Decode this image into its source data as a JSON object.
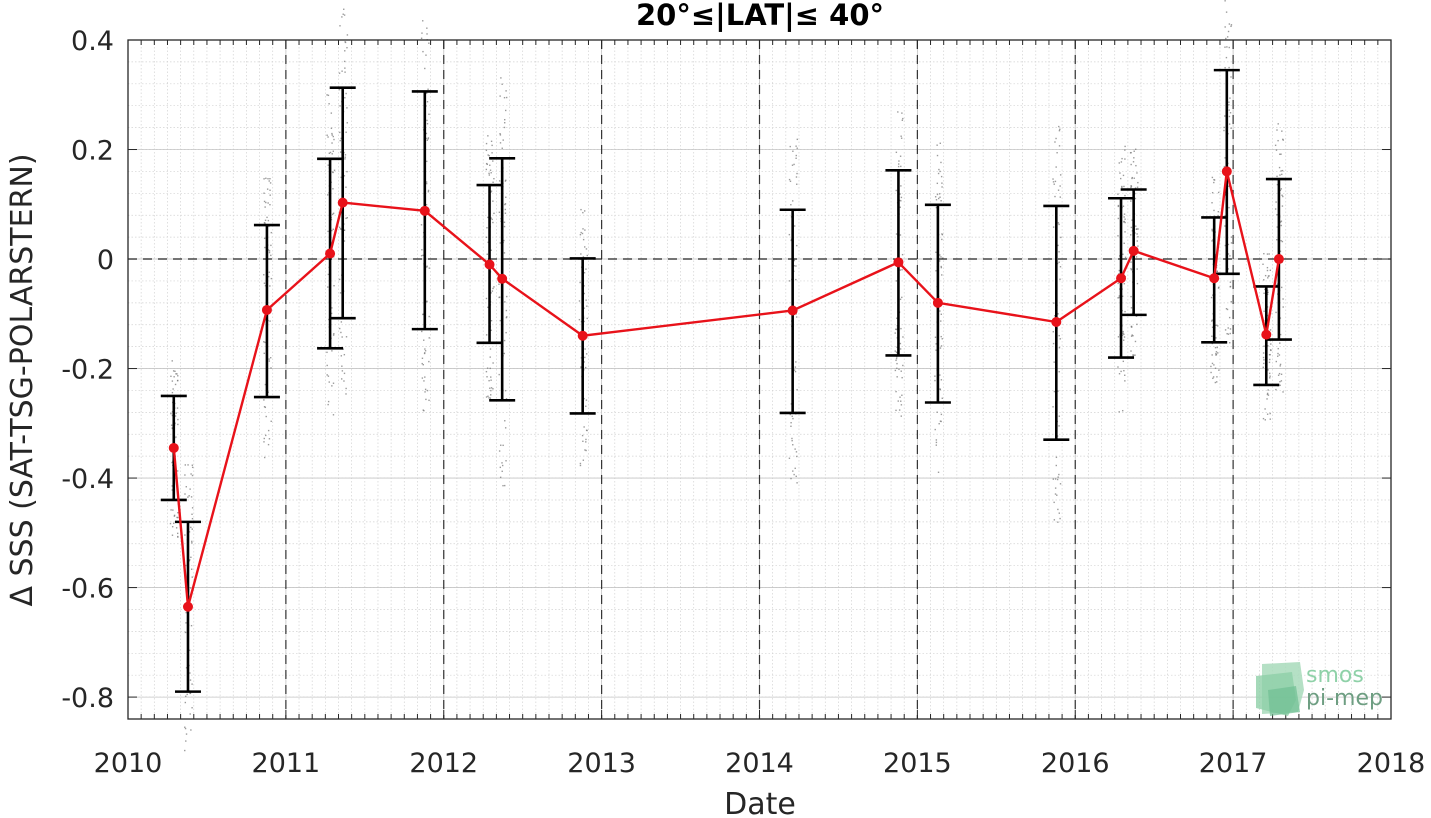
{
  "chart_data": {
    "type": "line",
    "title": "20°≤|LAT|≤ 40°",
    "xlabel": "Date",
    "ylabel": "Δ SSS (SAT-TSG-POLARSTERN)",
    "xlim": [
      2010,
      2018
    ],
    "ylim": [
      -0.84,
      0.4
    ],
    "xticks": [
      2010,
      2011,
      2012,
      2013,
      2014,
      2015,
      2016,
      2017,
      2018
    ],
    "xtick_labels": [
      "2010",
      "2011",
      "2012",
      "2013",
      "2014",
      "2015",
      "2016",
      "2017",
      "2018"
    ],
    "yticks": [
      0.4,
      0.2,
      0,
      -0.2,
      -0.4,
      -0.6,
      -0.8
    ],
    "ytick_labels": [
      "0.4",
      "0.2",
      "0",
      "-0.2",
      "-0.4",
      "-0.6",
      "-0.8"
    ],
    "year_divider_lines": [
      2011,
      2012,
      2013,
      2014,
      2015,
      2016,
      2017
    ],
    "zero_line": 0,
    "grid": true,
    "series": [
      {
        "color": "#e8121a",
        "x": [
          2010.29,
          2010.38,
          2010.88,
          2011.28,
          2011.36,
          2011.88,
          2012.29,
          2012.37,
          2012.88,
          2014.21,
          2014.88,
          2015.13,
          2015.88,
          2016.29,
          2016.37,
          2016.88,
          2016.96,
          2017.21,
          2017.29
        ],
        "y": [
          -0.345,
          -0.635,
          -0.093,
          0.01,
          0.103,
          0.088,
          -0.01,
          -0.036,
          -0.14,
          -0.094,
          -0.006,
          -0.08,
          -0.115,
          -0.035,
          0.015,
          -0.035,
          0.16,
          -0.138,
          0.0
        ],
        "err_low": [
          -0.44,
          -0.79,
          -0.252,
          -0.163,
          -0.108,
          -0.128,
          -0.153,
          -0.258,
          -0.282,
          -0.281,
          -0.176,
          -0.262,
          -0.33,
          -0.18,
          -0.102,
          -0.152,
          -0.027,
          -0.23,
          -0.147
        ],
        "err_high": [
          -0.25,
          -0.48,
          0.062,
          0.183,
          0.313,
          0.306,
          0.135,
          0.184,
          0.001,
          0.09,
          0.162,
          0.099,
          0.097,
          0.111,
          0.127,
          0.076,
          0.345,
          -0.05,
          0.146
        ]
      }
    ],
    "scatter_color": "#7a7a7a",
    "logo": {
      "line1": "smos",
      "line2": "pi-mep",
      "color1": "#8fd1a8",
      "color2": "#6e9e82"
    }
  }
}
